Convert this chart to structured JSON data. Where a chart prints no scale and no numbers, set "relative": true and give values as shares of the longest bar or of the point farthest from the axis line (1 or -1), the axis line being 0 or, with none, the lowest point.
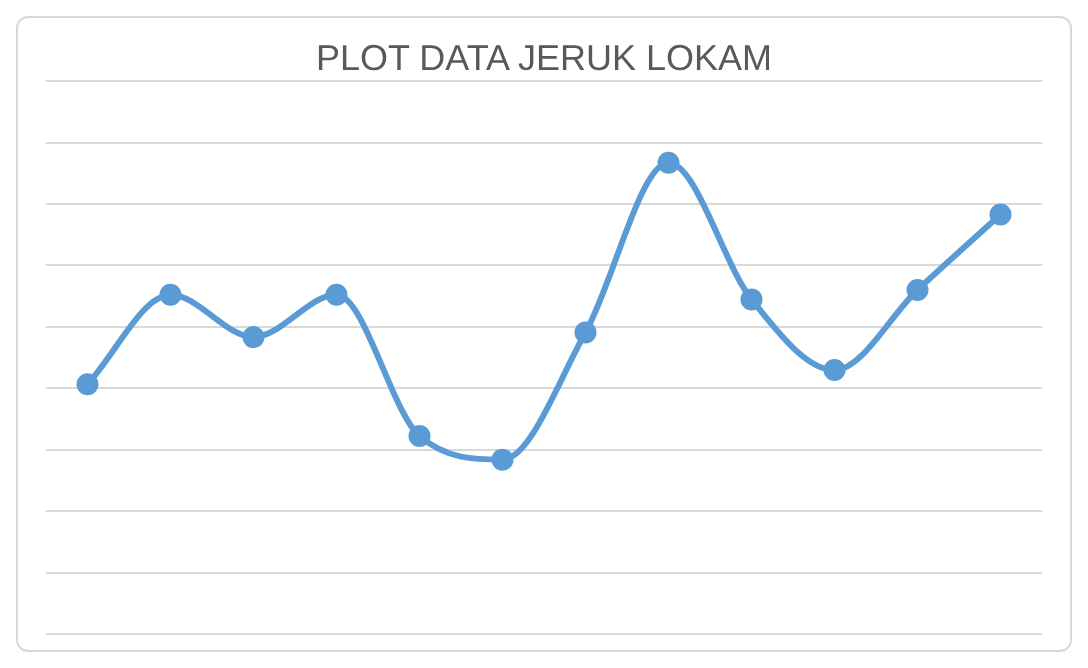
{
  "chart_data": {
    "type": "line",
    "title": "PLOT DATA JERUK LOKAM",
    "categories": [
      null,
      null,
      null,
      null,
      null,
      null,
      null,
      null,
      null,
      null,
      null,
      null
    ],
    "relative": true,
    "series": [
      {
        "color": "#5b9bd5",
        "values": [
          0.53,
          0.72,
          0.63,
          0.72,
          0.42,
          0.37,
          0.64,
          1,
          0.71,
          0.56,
          0.73,
          0.89
        ]
      }
    ],
    "grid": "y",
    "legend": false,
    "marker": "circle",
    "line_style": "solid"
  }
}
